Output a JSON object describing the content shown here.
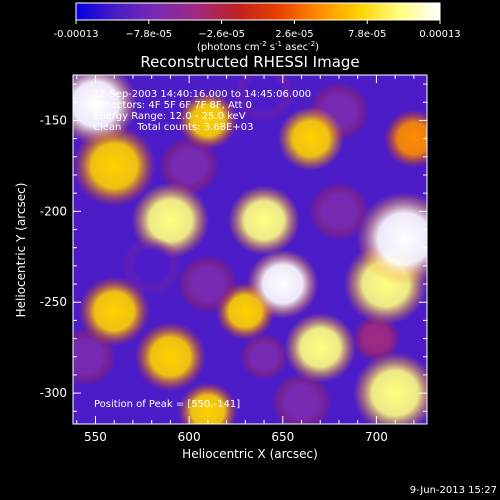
{
  "colorbar": {
    "tick_labels": [
      "-0.00013",
      "−7.8e-05",
      "−2.6e-05",
      "2.6e-05",
      "7.8e-05",
      "0.00013"
    ],
    "min": -0.00013,
    "max": 0.00013,
    "unit_parts": {
      "a": "(photons cm",
      "b": "-2",
      "c": " s",
      "d": "-1",
      "e": " asec",
      "f": "-2",
      "g": ")"
    },
    "gradient_colors": [
      "#0000e0",
      "#4b1cc8",
      "#7a2bb0",
      "#a02a80",
      "#c02020",
      "#e84000",
      "#ff8c00",
      "#ffd200",
      "#ffff80",
      "#ffffff"
    ]
  },
  "chart_data": {
    "type": "heatmap",
    "title": "Reconstructed RHESSI Image",
    "xlabel": "Heliocentric X (arcsec)",
    "ylabel": "Heliocentric Y (arcsec)",
    "xlim": [
      538,
      727
    ],
    "ylim": [
      -317,
      -125
    ],
    "x_ticks": [
      550,
      600,
      650,
      700
    ],
    "y_ticks": [
      -150,
      -200,
      -250,
      -300
    ],
    "x_tick_labels": [
      "550",
      "600",
      "650",
      "700"
    ],
    "y_tick_labels": [
      "-150",
      "-200",
      "-250",
      "-300"
    ],
    "annotations": [
      "12-Sep-2003 14:40:16.000 to 14:45:06.000",
      "Detectors: 4F 5F 6F 7F 8F, Att 0",
      "Energy Range: 12.0 - 25.0 keV",
      "Clean     Total counts: 3.68E+03"
    ],
    "peak_label": "Position of Peak = [550,-141]",
    "peak": [
      550,
      -141
    ],
    "blobs": [
      {
        "x": 550,
        "y": -141,
        "v": 1.0,
        "r": 14
      },
      {
        "x": 560,
        "y": -175,
        "v": 0.45,
        "r": 14
      },
      {
        "x": 590,
        "y": -205,
        "v": 0.85,
        "r": 13
      },
      {
        "x": 640,
        "y": -205,
        "v": 0.75,
        "r": 12
      },
      {
        "x": 650,
        "y": -240,
        "v": 0.95,
        "r": 12
      },
      {
        "x": 715,
        "y": -215,
        "v": 0.9,
        "r": 16
      },
      {
        "x": 705,
        "y": -240,
        "v": 0.8,
        "r": 14
      },
      {
        "x": 630,
        "y": -255,
        "v": 0.6,
        "r": 10
      },
      {
        "x": 560,
        "y": -255,
        "v": 0.6,
        "r": 12
      },
      {
        "x": 590,
        "y": -280,
        "v": 0.6,
        "r": 12
      },
      {
        "x": 670,
        "y": -275,
        "v": 0.7,
        "r": 12
      },
      {
        "x": 710,
        "y": -300,
        "v": 0.7,
        "r": 14
      },
      {
        "x": 665,
        "y": -160,
        "v": 0.65,
        "r": 11
      },
      {
        "x": 610,
        "y": -150,
        "v": 0.5,
        "r": 10
      },
      {
        "x": 610,
        "y": -310,
        "v": 0.5,
        "r": 10
      },
      {
        "x": 720,
        "y": -160,
        "v": 0.4,
        "r": 10
      },
      {
        "x": 580,
        "y": -230,
        "v": -0.85,
        "r": 10
      },
      {
        "x": 610,
        "y": -240,
        "v": -0.6,
        "r": 10
      },
      {
        "x": 600,
        "y": -175,
        "v": -0.6,
        "r": 10
      },
      {
        "x": 640,
        "y": -135,
        "v": -0.8,
        "r": 10
      },
      {
        "x": 680,
        "y": -145,
        "v": -0.6,
        "r": 10
      },
      {
        "x": 680,
        "y": -200,
        "v": -0.5,
        "r": 10
      },
      {
        "x": 545,
        "y": -280,
        "v": -0.5,
        "r": 10
      },
      {
        "x": 660,
        "y": -305,
        "v": -0.6,
        "r": 10
      },
      {
        "x": 640,
        "y": -280,
        "v": -0.5,
        "r": 8
      },
      {
        "x": 700,
        "y": -270,
        "v": -0.4,
        "r": 8
      }
    ]
  },
  "footer": {
    "timestamp": "9-Jun-2013 15:27"
  }
}
